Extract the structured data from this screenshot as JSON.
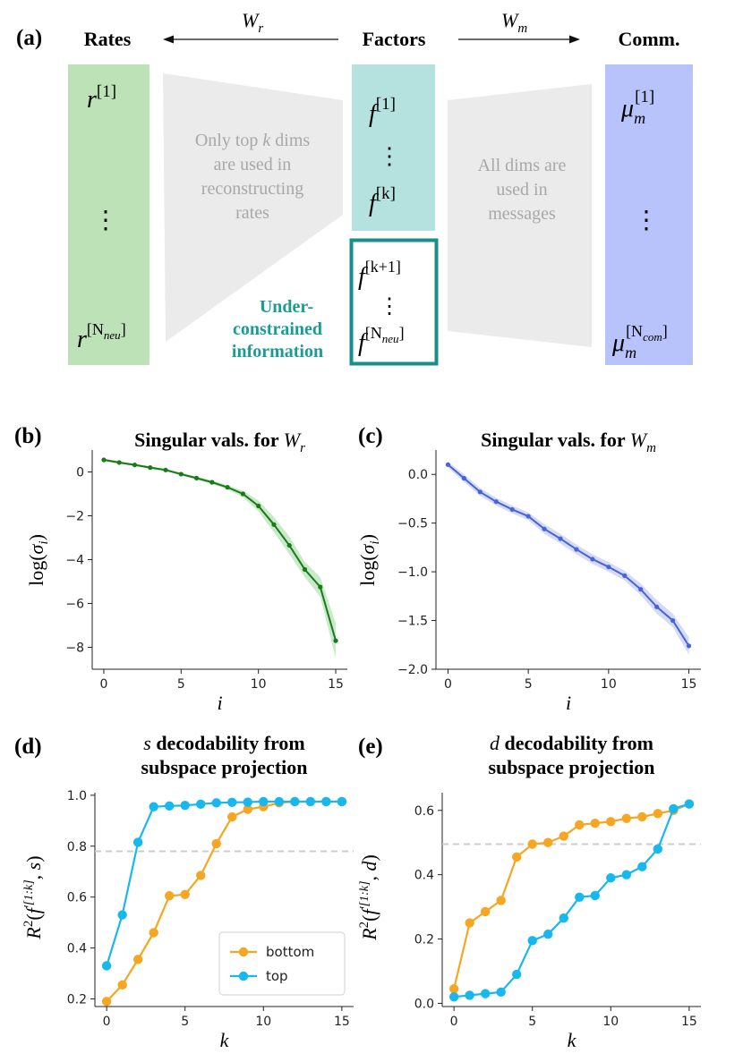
{
  "panel_a": {
    "label": "(a)",
    "rates": "Rates",
    "factors": "Factors",
    "comm": "Comm.",
    "wr": "W",
    "wr_sub": "r",
    "wm": "W",
    "wm_sub": "m",
    "r_sym": "r",
    "r_top_sup": "[1]",
    "r_bot_sup": "[N",
    "r_bot_sub": "neu",
    "f_sym": "f",
    "f1_sup": "[1]",
    "fk_sup": "[k]",
    "fk1_sup": "[k+1]",
    "fn_sup": "[N",
    "fn_sub": "neu",
    "mu_sym": "μ",
    "mu_sub": "m",
    "mu_top_sup": "[1]",
    "mu_bot_sup": "[N",
    "mu_bot_sub": "com",
    "close_bracket": "]",
    "dots": "⋮",
    "left_funnel": [
      "Only top k dims",
      "are used in",
      "reconstructing",
      "rates"
    ],
    "right_funnel": [
      "All dims are",
      "used in",
      "messages"
    ],
    "under": [
      "Under-",
      "constrained",
      "information"
    ],
    "colors": {
      "rates": "#bde2b7",
      "factors_top": "#b5e1de",
      "factors_box": "#1a8e89",
      "comm": "#b8c2fb",
      "funnel": "#ebebeb",
      "under_text": "#1a9b96",
      "funnel_text": "#a8a8a8"
    }
  },
  "chart_data": [
    {
      "id": "b",
      "panel_label": "(b)",
      "type": "line",
      "title": "Singular vals. for ",
      "title_sym": "W",
      "title_sub": "r",
      "xlabel": "i",
      "ylabel": "log(σ",
      "ylabel_sub": "i",
      "ylabel_close": ")",
      "xlim": [
        -0.75,
        15.75
      ],
      "ylim": [
        -9,
        1
      ],
      "xticks": [
        0,
        5,
        10,
        15
      ],
      "yticks": [
        0,
        -2,
        -4,
        -6,
        -8
      ],
      "series": [
        {
          "name": "sv_wr",
          "color": "#1a7a1a",
          "band_color": "#bfe6bf",
          "x": [
            0,
            1,
            2,
            3,
            4,
            5,
            6,
            7,
            8,
            9,
            10,
            11,
            12,
            13,
            14,
            15
          ],
          "values": [
            0.55,
            0.43,
            0.32,
            0.2,
            0.09,
            -0.1,
            -0.28,
            -0.47,
            -0.7,
            -1.0,
            -1.55,
            -2.4,
            -3.35,
            -4.45,
            -5.25,
            -7.7
          ],
          "band": [
            0.06,
            0.06,
            0.06,
            0.06,
            0.06,
            0.07,
            0.07,
            0.08,
            0.1,
            0.15,
            0.25,
            0.35,
            0.4,
            0.35,
            0.45,
            0.8
          ]
        }
      ]
    },
    {
      "id": "c",
      "panel_label": "(c)",
      "type": "line",
      "title": "Singular vals. for ",
      "title_sym": "W",
      "title_sub": "m",
      "xlabel": "i",
      "ylabel": "log(σ",
      "ylabel_sub": "i",
      "ylabel_close": ")",
      "xlim": [
        -0.75,
        15.75
      ],
      "ylim": [
        -2.0,
        0.25
      ],
      "xticks": [
        0,
        5,
        10,
        15
      ],
      "yticks": [
        0.0,
        -0.5,
        -1.0,
        -1.5,
        -2.0
      ],
      "series": [
        {
          "name": "sv_wm",
          "color": "#4a63d6",
          "band_color": "#cdd5f5",
          "x": [
            0,
            1,
            2,
            3,
            4,
            5,
            6,
            7,
            8,
            9,
            10,
            11,
            12,
            13,
            14,
            15
          ],
          "values": [
            0.1,
            -0.04,
            -0.18,
            -0.28,
            -0.36,
            -0.43,
            -0.56,
            -0.66,
            -0.77,
            -0.87,
            -0.95,
            -1.04,
            -1.18,
            -1.36,
            -1.5,
            -1.76
          ],
          "band": [
            0.03,
            0.04,
            0.04,
            0.04,
            0.04,
            0.04,
            0.05,
            0.05,
            0.05,
            0.05,
            0.05,
            0.05,
            0.06,
            0.07,
            0.07,
            0.09
          ]
        }
      ]
    },
    {
      "id": "d",
      "panel_label": "(d)",
      "type": "line",
      "title_lines": [
        "decodability from",
        "subspace projection"
      ],
      "title_sym": "s",
      "xlabel": "k",
      "ylabel_parts": [
        "R",
        "2",
        "(f",
        "′[1:k]",
        ", s)"
      ],
      "xlim": [
        -0.75,
        15.75
      ],
      "ylim": [
        0.17,
        1.01
      ],
      "xticks": [
        0,
        5,
        10,
        15
      ],
      "yticks": [
        0.2,
        0.4,
        0.6,
        0.8,
        1.0
      ],
      "ytick_labels": [
        "0.2",
        "0.4",
        "0.6",
        "0.8",
        "1.0"
      ],
      "hline": 0.78,
      "legend": {
        "placement": "lower-right",
        "entries": [
          "bottom",
          "top"
        ]
      },
      "series": [
        {
          "name": "bottom",
          "color": "#f5a623",
          "x": [
            0,
            1,
            2,
            3,
            4,
            5,
            6,
            7,
            8,
            9,
            10,
            11,
            12,
            13,
            14,
            15
          ],
          "values": [
            0.19,
            0.255,
            0.355,
            0.46,
            0.605,
            0.61,
            0.685,
            0.81,
            0.915,
            0.945,
            0.955,
            0.97,
            0.975,
            0.975,
            0.975,
            0.975
          ]
        },
        {
          "name": "top",
          "color": "#18b8ee",
          "x": [
            0,
            1,
            2,
            3,
            4,
            5,
            6,
            7,
            8,
            9,
            10,
            11,
            12,
            13,
            14,
            15
          ],
          "values": [
            0.33,
            0.53,
            0.815,
            0.955,
            0.958,
            0.96,
            0.965,
            0.97,
            0.972,
            0.973,
            0.975,
            0.975,
            0.975,
            0.975,
            0.975,
            0.975
          ]
        }
      ]
    },
    {
      "id": "e",
      "panel_label": "(e)",
      "type": "line",
      "title_lines": [
        "decodability from",
        "subspace projection"
      ],
      "title_sym": "d",
      "xlabel": "k",
      "ylabel_parts": [
        "R",
        "2",
        "(f",
        "′[1:k]",
        ", d)"
      ],
      "xlim": [
        -0.75,
        15.75
      ],
      "ylim": [
        -0.01,
        0.655
      ],
      "xticks": [
        0,
        5,
        10,
        15
      ],
      "yticks": [
        0.0,
        0.2,
        0.4,
        0.6
      ],
      "ytick_labels": [
        "0.0",
        "0.2",
        "0.4",
        "0.6"
      ],
      "hline": 0.495,
      "series": [
        {
          "name": "bottom",
          "color": "#f5a623",
          "x": [
            0,
            1,
            2,
            3,
            4,
            5,
            6,
            7,
            8,
            9,
            10,
            11,
            12,
            13,
            14,
            15
          ],
          "values": [
            0.045,
            0.25,
            0.285,
            0.32,
            0.455,
            0.495,
            0.5,
            0.52,
            0.555,
            0.56,
            0.565,
            0.575,
            0.58,
            0.59,
            0.6,
            0.62
          ]
        },
        {
          "name": "top",
          "color": "#18b8ee",
          "x": [
            0,
            1,
            2,
            3,
            4,
            5,
            6,
            7,
            8,
            9,
            10,
            11,
            12,
            13,
            14,
            15
          ],
          "values": [
            0.02,
            0.025,
            0.03,
            0.035,
            0.09,
            0.195,
            0.215,
            0.265,
            0.33,
            0.335,
            0.39,
            0.4,
            0.425,
            0.48,
            0.605,
            0.62
          ]
        }
      ]
    }
  ]
}
